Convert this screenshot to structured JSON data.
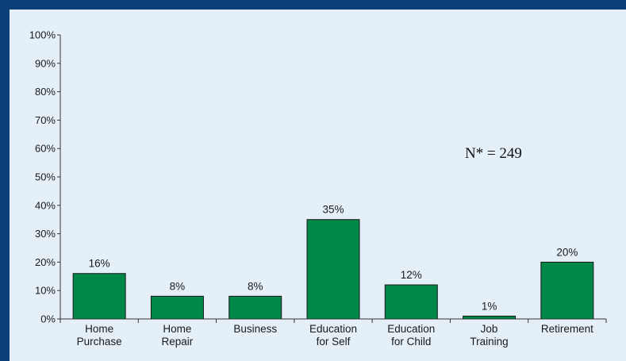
{
  "chart_data": {
    "type": "bar",
    "title": "",
    "xlabel": "",
    "ylabel": "",
    "categories": [
      [
        "Home",
        "Purchase"
      ],
      [
        "Home",
        "Repair"
      ],
      [
        "Business"
      ],
      [
        "Education",
        "for Self"
      ],
      [
        "Education",
        "for Child"
      ],
      [
        "Job",
        "Training"
      ],
      [
        "Retirement"
      ]
    ],
    "values": [
      16,
      8,
      8,
      35,
      12,
      1,
      20
    ],
    "data_labels": [
      "16%",
      "8%",
      "8%",
      "35%",
      "12%",
      "1%",
      "20%"
    ],
    "ylim": [
      0,
      100
    ],
    "yticks": [
      0,
      10,
      20,
      30,
      40,
      50,
      60,
      70,
      80,
      90,
      100
    ],
    "ytick_labels": [
      "0%",
      "10%",
      "20%",
      "30%",
      "40%",
      "50%",
      "60%",
      "70%",
      "80%",
      "90%",
      "100%"
    ],
    "annotation": "N* = 249",
    "grid": false,
    "legend": "none",
    "colors": {
      "bar": "#008848",
      "bar_stroke": "#1a1a1a",
      "axis": "#333333",
      "panel": "#e4eff8",
      "frame": "#0b3f7a"
    }
  }
}
